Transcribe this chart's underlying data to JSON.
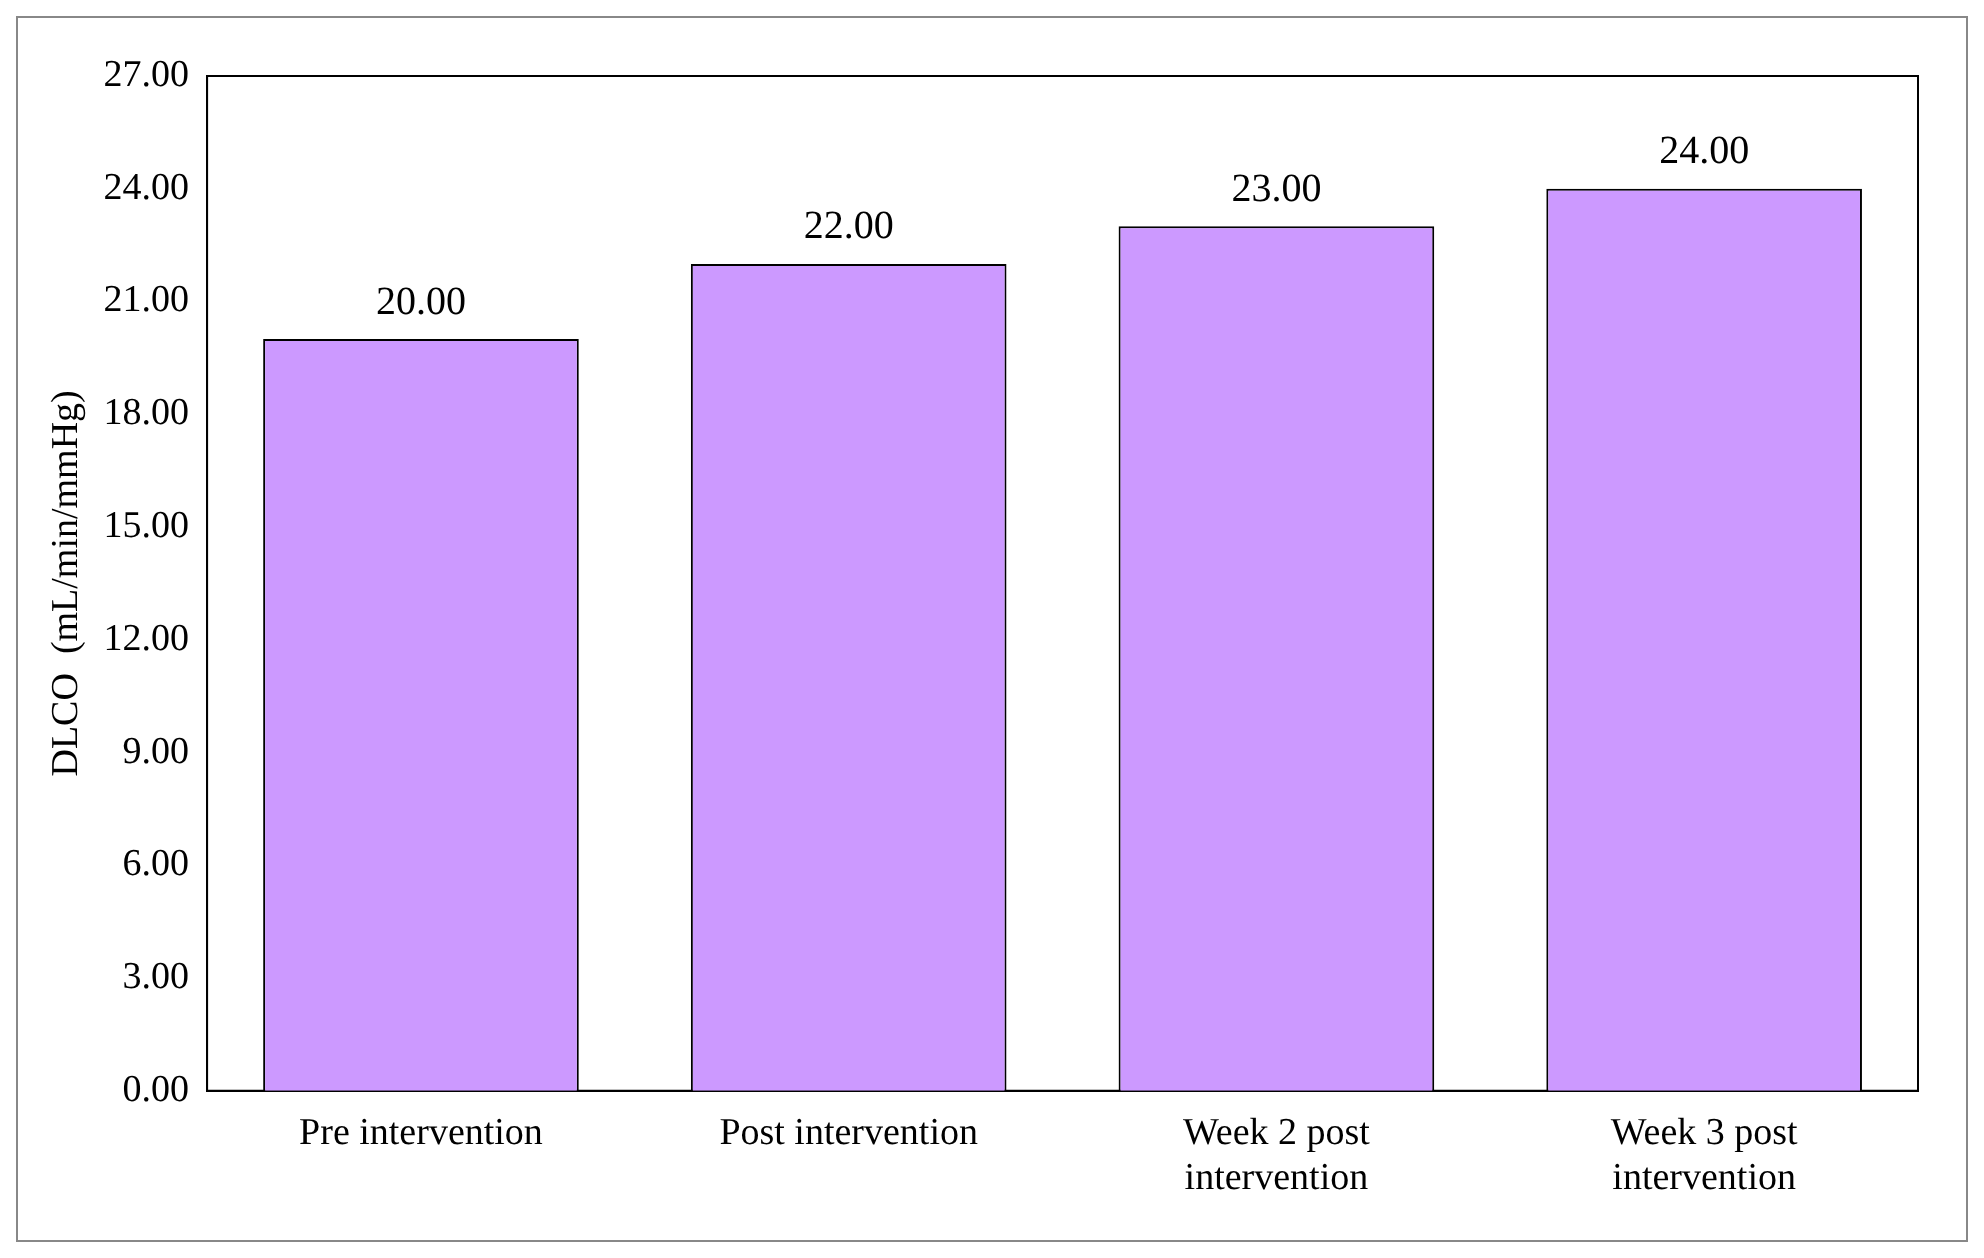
{
  "chart_data": {
    "type": "bar",
    "ylabel": "DLCO  (mL/min/mmHg)",
    "categories": [
      "Pre intervention",
      "Post intervention",
      "Week 2 post intervention",
      "Week 3 post intervention"
    ],
    "values": [
      20,
      22,
      23,
      24
    ],
    "color": "#cc99ff",
    "value_labels": [
      "20.00",
      "22.00",
      "23.00",
      "24.00"
    ],
    "ylim": [
      0,
      27
    ],
    "yticks": [
      {
        "value": 0,
        "label": "0.00"
      },
      {
        "value": 3,
        "label": "3.00"
      },
      {
        "value": 6,
        "label": "6.00"
      },
      {
        "value": 9,
        "label": "9.00"
      },
      {
        "value": 12,
        "label": "12.00"
      },
      {
        "value": 15,
        "label": "15.00"
      },
      {
        "value": 18,
        "label": "18.00"
      },
      {
        "value": 21,
        "label": "21.00"
      },
      {
        "value": 24,
        "label": "24.00"
      },
      {
        "value": 27,
        "label": "27.00"
      }
    ],
    "grid": false,
    "legend": false
  }
}
